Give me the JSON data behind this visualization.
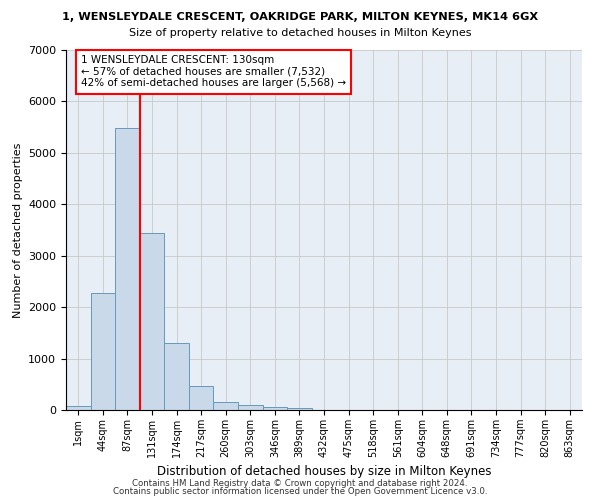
{
  "title1": "1, WENSLEYDALE CRESCENT, OAKRIDGE PARK, MILTON KEYNES, MK14 6GX",
  "title2": "Size of property relative to detached houses in Milton Keynes",
  "xlabel": "Distribution of detached houses by size in Milton Keynes",
  "ylabel": "Number of detached properties",
  "categories": [
    "1sqm",
    "44sqm",
    "87sqm",
    "131sqm",
    "174sqm",
    "217sqm",
    "260sqm",
    "303sqm",
    "346sqm",
    "389sqm",
    "432sqm",
    "475sqm",
    "518sqm",
    "561sqm",
    "604sqm",
    "648sqm",
    "691sqm",
    "734sqm",
    "777sqm",
    "820sqm",
    "863sqm"
  ],
  "bar_heights": [
    75,
    2280,
    5480,
    3440,
    1310,
    460,
    155,
    95,
    55,
    45,
    0,
    0,
    0,
    0,
    0,
    0,
    0,
    0,
    0,
    0,
    0
  ],
  "bar_color": "#c9d9ea",
  "bar_edge_color": "#6699bb",
  "red_line_x": 2.5,
  "annotation_text": "1 WENSLEYDALE CRESCENT: 130sqm\n← 57% of detached houses are smaller (7,532)\n42% of semi-detached houses are larger (5,568) →",
  "annotation_box_color": "white",
  "annotation_box_edge_color": "red",
  "red_line_color": "red",
  "ylim": [
    0,
    7000
  ],
  "yticks": [
    0,
    1000,
    2000,
    3000,
    4000,
    5000,
    6000,
    7000
  ],
  "grid_color": "#c8c8c8",
  "bg_color": "#e8eef6",
  "footer1": "Contains HM Land Registry data © Crown copyright and database right 2024.",
  "footer2": "Contains public sector information licensed under the Open Government Licence v3.0."
}
